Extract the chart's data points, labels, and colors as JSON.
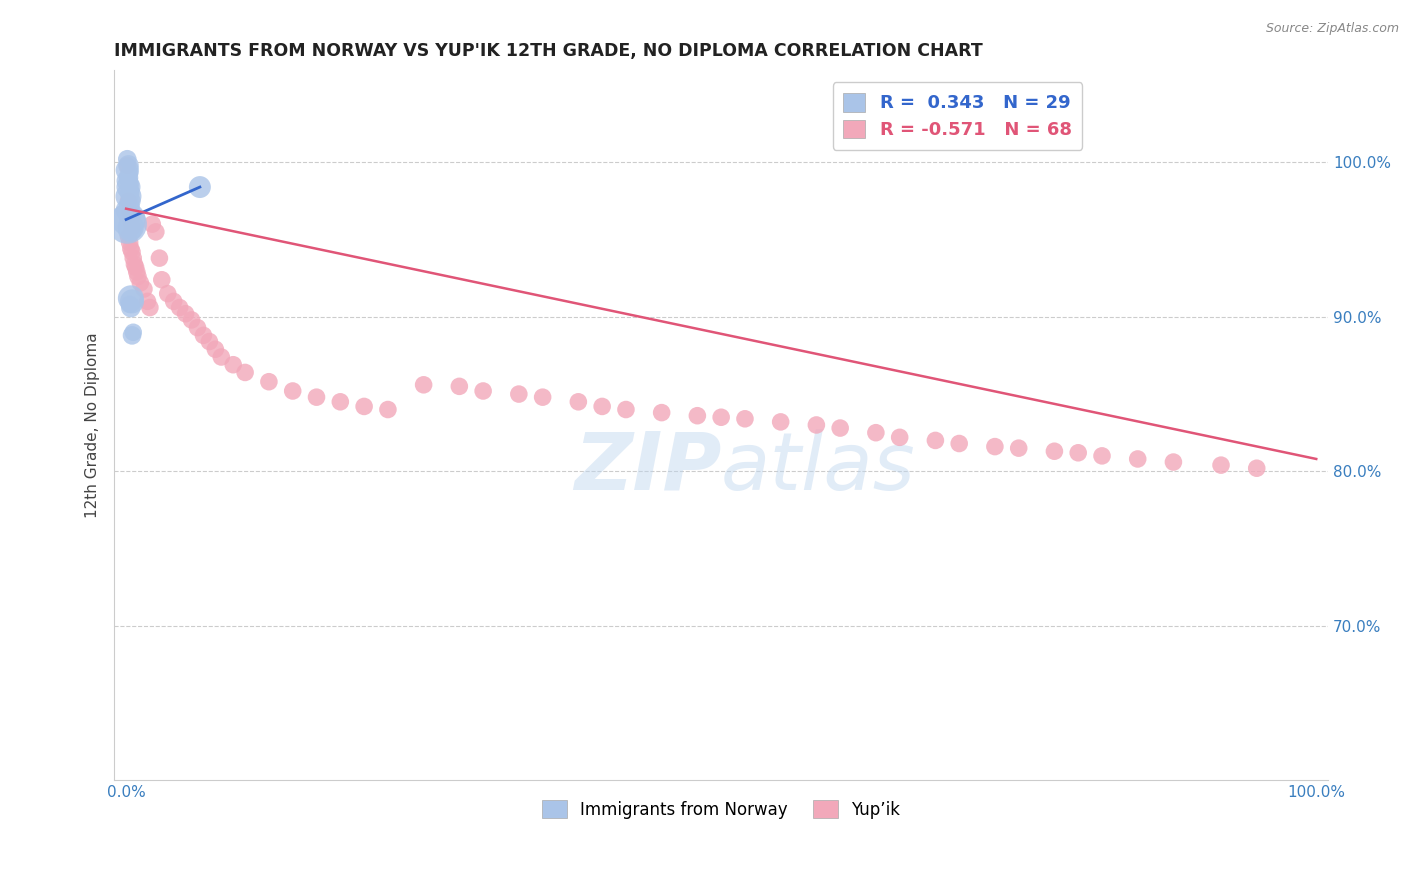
{
  "title": "IMMIGRANTS FROM NORWAY VS YUP'IK 12TH GRADE, NO DIPLOMA CORRELATION CHART",
  "source": "Source: ZipAtlas.com",
  "ylabel": "12th Grade, No Diploma",
  "legend_blue_text": "R =  0.343   N = 29",
  "legend_pink_text": "R = -0.571   N = 68",
  "legend_label_blue": "Immigrants from Norway",
  "legend_label_pink": "Yup’ik",
  "blue_line_color": "#3366cc",
  "pink_line_color": "#e05577",
  "blue_dot_color": "#aac4e8",
  "pink_dot_color": "#f2a8ba",
  "background_color": "#ffffff",
  "grid_color": "#cccccc",
  "xlim": [
    0.0,
    1.0
  ],
  "ylim": [
    0.6,
    1.06
  ],
  "yticks": [
    0.7,
    0.8,
    0.9,
    1.0
  ],
  "ytick_labels": [
    "70.0%",
    "80.0%",
    "90.0%",
    "100.0%"
  ],
  "xticks": [
    0.0,
    1.0
  ],
  "xtick_labels": [
    "0.0%",
    "100.0%"
  ],
  "blue_line_x": [
    0.0,
    0.062
  ],
  "blue_line_y": [
    0.963,
    0.984
  ],
  "pink_line_x": [
    0.0,
    1.0
  ],
  "pink_line_y": [
    0.97,
    0.808
  ],
  "norway_x": [
    0.001,
    0.002,
    0.001,
    0.003,
    0.002,
    0.001,
    0.003,
    0.002,
    0.004,
    0.003,
    0.002,
    0.003,
    0.004,
    0.002,
    0.003,
    0.001,
    0.002,
    0.003,
    0.002,
    0.001,
    0.004,
    0.003,
    0.004,
    0.005,
    0.003,
    0.004,
    0.006,
    0.005,
    0.062
  ],
  "norway_y": [
    1.002,
    0.998,
    0.995,
    0.993,
    0.99,
    0.988,
    0.986,
    0.984,
    0.982,
    0.98,
    0.978,
    0.976,
    0.975,
    0.973,
    0.971,
    0.969,
    0.967,
    0.965,
    0.963,
    0.96,
    0.958,
    0.956,
    0.912,
    0.91,
    0.908,
    0.906,
    0.89,
    0.888,
    0.984
  ],
  "norway_sizes": [
    180,
    220,
    280,
    160,
    200,
    240,
    180,
    300,
    150,
    200,
    350,
    160,
    200,
    180,
    220,
    280,
    180,
    250,
    600,
    800,
    350,
    280,
    350,
    300,
    160,
    200,
    160,
    180,
    250
  ],
  "yupik_x": [
    0.001,
    0.002,
    0.003,
    0.004,
    0.005,
    0.002,
    0.003,
    0.004,
    0.005,
    0.006,
    0.007,
    0.008,
    0.009,
    0.01,
    0.012,
    0.015,
    0.018,
    0.02,
    0.022,
    0.025,
    0.028,
    0.03,
    0.035,
    0.04,
    0.045,
    0.05,
    0.055,
    0.06,
    0.065,
    0.07,
    0.075,
    0.08,
    0.09,
    0.1,
    0.12,
    0.14,
    0.16,
    0.18,
    0.2,
    0.22,
    0.25,
    0.28,
    0.3,
    0.33,
    0.35,
    0.38,
    0.4,
    0.42,
    0.45,
    0.48,
    0.5,
    0.52,
    0.55,
    0.58,
    0.6,
    0.63,
    0.65,
    0.68,
    0.7,
    0.73,
    0.75,
    0.78,
    0.8,
    0.82,
    0.85,
    0.88,
    0.92,
    0.95
  ],
  "yupik_y": [
    0.998,
    0.975,
    0.968,
    0.962,
    0.958,
    0.952,
    0.948,
    0.944,
    0.942,
    0.938,
    0.934,
    0.932,
    0.929,
    0.926,
    0.922,
    0.918,
    0.91,
    0.906,
    0.96,
    0.955,
    0.938,
    0.924,
    0.915,
    0.91,
    0.906,
    0.902,
    0.898,
    0.893,
    0.888,
    0.884,
    0.879,
    0.874,
    0.869,
    0.864,
    0.858,
    0.852,
    0.848,
    0.845,
    0.842,
    0.84,
    0.856,
    0.855,
    0.852,
    0.85,
    0.848,
    0.845,
    0.842,
    0.84,
    0.838,
    0.836,
    0.835,
    0.834,
    0.832,
    0.83,
    0.828,
    0.825,
    0.822,
    0.82,
    0.818,
    0.816,
    0.815,
    0.813,
    0.812,
    0.81,
    0.808,
    0.806,
    0.804,
    0.802
  ],
  "yupik_sizes": [
    160,
    160,
    160,
    160,
    160,
    160,
    160,
    160,
    160,
    160,
    160,
    160,
    160,
    160,
    160,
    160,
    160,
    160,
    160,
    160,
    160,
    160,
    160,
    160,
    160,
    160,
    160,
    160,
    160,
    160,
    160,
    160,
    160,
    160,
    160,
    160,
    160,
    160,
    160,
    160,
    160,
    160,
    160,
    160,
    160,
    160,
    160,
    160,
    160,
    160,
    160,
    160,
    160,
    160,
    160,
    160,
    160,
    160,
    160,
    160,
    160,
    160,
    160,
    160,
    160,
    160,
    160,
    160
  ]
}
